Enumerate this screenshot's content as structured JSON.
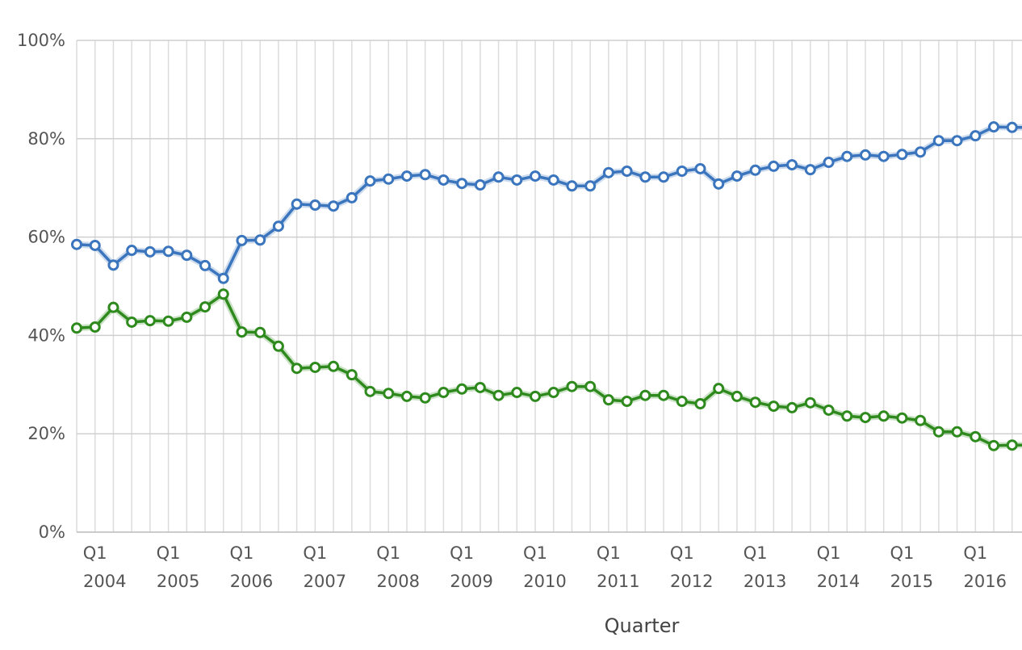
{
  "chart_data": {
    "type": "line",
    "title": "",
    "xlabel": "Quarter",
    "ylabel": "",
    "ylim": [
      0,
      100
    ],
    "y_ticks": [
      "0%",
      "20%",
      "40%",
      "60%",
      "80%",
      "100%"
    ],
    "y_tick_values": [
      0,
      20,
      40,
      60,
      80,
      100
    ],
    "grid": true,
    "x": [
      "Q4 2003",
      "Q1 2004",
      "Q2 2004",
      "Q3 2004",
      "Q4 2004",
      "Q1 2005",
      "Q2 2005",
      "Q3 2005",
      "Q4 2005",
      "Q1 2006",
      "Q2 2006",
      "Q3 2006",
      "Q4 2006",
      "Q1 2007",
      "Q2 2007",
      "Q3 2007",
      "Q4 2007",
      "Q1 2008",
      "Q2 2008",
      "Q3 2008",
      "Q4 2008",
      "Q1 2009",
      "Q2 2009",
      "Q3 2009",
      "Q4 2009",
      "Q1 2010",
      "Q2 2010",
      "Q3 2010",
      "Q4 2010",
      "Q1 2011",
      "Q2 2011",
      "Q3 2011",
      "Q4 2011",
      "Q1 2012",
      "Q2 2012",
      "Q3 2012",
      "Q4 2012",
      "Q1 2013",
      "Q2 2013",
      "Q3 2013",
      "Q4 2013",
      "Q1 2014",
      "Q2 2014",
      "Q3 2014",
      "Q4 2014",
      "Q1 2015",
      "Q2 2015",
      "Q3 2015",
      "Q4 2015",
      "Q1 2016",
      "Q2 2016",
      "Q3 2016"
    ],
    "x_tick_labels": [
      {
        "index": 1,
        "quarter": "Q1",
        "year": "2004"
      },
      {
        "index": 5,
        "quarter": "Q1",
        "year": "2005"
      },
      {
        "index": 9,
        "quarter": "Q1",
        "year": "2006"
      },
      {
        "index": 13,
        "quarter": "Q1",
        "year": "2007"
      },
      {
        "index": 17,
        "quarter": "Q1",
        "year": "2008"
      },
      {
        "index": 21,
        "quarter": "Q1",
        "year": "2009"
      },
      {
        "index": 25,
        "quarter": "Q1",
        "year": "2010"
      },
      {
        "index": 29,
        "quarter": "Q1",
        "year": "2011"
      },
      {
        "index": 33,
        "quarter": "Q1",
        "year": "2012"
      },
      {
        "index": 37,
        "quarter": "Q1",
        "year": "2013"
      },
      {
        "index": 41,
        "quarter": "Q1",
        "year": "2014"
      },
      {
        "index": 45,
        "quarter": "Q1",
        "year": "2015"
      },
      {
        "index": 49,
        "quarter": "Q1",
        "year": "2016"
      }
    ],
    "series": [
      {
        "id": "blue",
        "color": "#3a75bd",
        "values": [
          58.5,
          58.3,
          54.3,
          57.3,
          57.0,
          57.1,
          56.3,
          54.2,
          51.6,
          59.3,
          59.4,
          62.2,
          66.7,
          66.5,
          66.3,
          68.0,
          71.4,
          71.8,
          72.4,
          72.7,
          71.6,
          70.9,
          70.6,
          72.2,
          71.6,
          72.4,
          71.6,
          70.4,
          70.4,
          73.1,
          73.4,
          72.2,
          72.2,
          73.4,
          73.9,
          70.8,
          72.4,
          73.6,
          74.4,
          74.7,
          73.7,
          75.2,
          76.4,
          76.7,
          76.4,
          76.8,
          77.3,
          79.6,
          79.6,
          80.6,
          82.4,
          82.3
        ]
      },
      {
        "id": "green",
        "color": "#2f8a1e",
        "values": [
          41.5,
          41.7,
          45.7,
          42.7,
          43.0,
          42.9,
          43.7,
          45.8,
          48.4,
          40.7,
          40.6,
          37.8,
          33.3,
          33.5,
          33.7,
          32.0,
          28.6,
          28.2,
          27.6,
          27.3,
          28.4,
          29.1,
          29.4,
          27.8,
          28.4,
          27.6,
          28.4,
          29.6,
          29.6,
          26.9,
          26.6,
          27.8,
          27.8,
          26.6,
          26.1,
          29.2,
          27.6,
          26.4,
          25.6,
          25.3,
          26.3,
          24.8,
          23.6,
          23.3,
          23.6,
          23.2,
          22.7,
          20.4,
          20.4,
          19.4,
          17.6,
          17.7
        ]
      }
    ]
  }
}
